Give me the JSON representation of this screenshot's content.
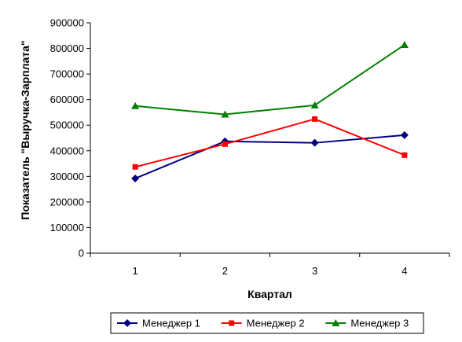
{
  "chart_data": {
    "type": "line",
    "title": "",
    "xlabel": "Квартал",
    "ylabel": "Показатель \"Выручка-Зарплата\"",
    "categories": [
      "1",
      "2",
      "3",
      "4"
    ],
    "ylim": [
      0,
      900000
    ],
    "yticks": [
      "0",
      "100000",
      "200000",
      "300000",
      "400000",
      "500000",
      "600000",
      "700000",
      "800000",
      "900000"
    ],
    "grid": false,
    "legend_position": "bottom",
    "series": [
      {
        "name": "Менеджер 1",
        "values": [
          292000,
          437000,
          431000,
          461000
        ],
        "color": "#000080",
        "marker": "diamond"
      },
      {
        "name": "Менеджер 2",
        "values": [
          337000,
          426000,
          524000,
          383000
        ],
        "color": "#ff0000",
        "marker": "square"
      },
      {
        "name": "Менеджер 3",
        "values": [
          575000,
          542000,
          578000,
          814000
        ],
        "color": "#008000",
        "marker": "triangle"
      }
    ]
  }
}
